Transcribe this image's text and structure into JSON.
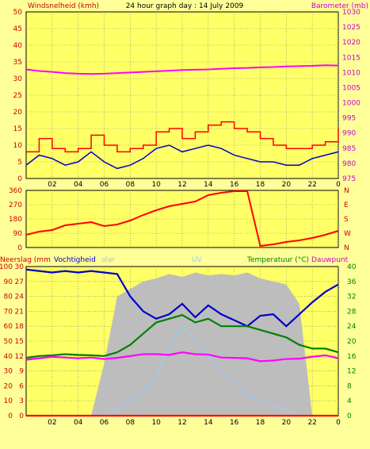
{
  "header": {
    "left_label": "Windsnelheid (kmh)",
    "title": "24 hour graph day : 14 July 2009",
    "right_label": "Barometer (mb)"
  },
  "time_ticks": [
    "02",
    "04",
    "06",
    "08",
    "10",
    "12",
    "14",
    "16",
    "18",
    "20",
    "22",
    "0"
  ],
  "colors": {
    "background": "#ffff99",
    "plot_bg": "#ffff66",
    "gust": "#ff0000",
    "wind": "#0000cc",
    "barometer": "#ff00ff",
    "direction": "#ff0000",
    "solar": "#bdbdbd",
    "uv": "#99ccff",
    "humidity": "#0000cc",
    "temperature": "#008000",
    "dewpoint": "#ff00ff",
    "rain": "#ff0000",
    "left_axis": "#cc0000",
    "right_axis_top": "#cc00cc",
    "right_axis_bottom": "#008000",
    "grid": "#808080"
  },
  "bottom_labels": {
    "rain": "Neerslag (mm",
    "humidity": "Vochtigheid",
    "solar": "olar",
    "uv": "UV",
    "temperature": "Temperatuur (°C)",
    "dewpoint": "Dauwpunt"
  },
  "chart_data": [
    {
      "type": "line",
      "title": "24 hour graph day : 14 July 2009",
      "ylabel": "Windsnelheid (kmh)",
      "y2label": "Barometer (mb)",
      "ylim": [
        0,
        50
      ],
      "y2lim": [
        975,
        1030
      ],
      "yticks": [
        0,
        5,
        10,
        15,
        20,
        25,
        30,
        35,
        40,
        45,
        50
      ],
      "y2ticks": [
        975,
        980,
        985,
        990,
        995,
        1000,
        1005,
        1010,
        1015,
        1020,
        1025,
        1030
      ],
      "x": [
        0,
        1,
        2,
        3,
        4,
        5,
        6,
        7,
        8,
        9,
        10,
        11,
        12,
        13,
        14,
        15,
        16,
        17,
        18,
        19,
        20,
        21,
        22,
        23,
        24
      ],
      "series": [
        {
          "name": "gust",
          "axis": "left",
          "values": [
            8,
            12,
            9,
            8,
            9,
            13,
            10,
            8,
            9,
            10,
            14,
            15,
            12,
            14,
            16,
            17,
            15,
            14,
            12,
            10,
            9,
            9,
            10,
            11,
            15
          ]
        },
        {
          "name": "wind",
          "axis": "left",
          "values": [
            4,
            7,
            6,
            4,
            5,
            8,
            5,
            3,
            4,
            6,
            9,
            10,
            8,
            9,
            10,
            9,
            7,
            6,
            5,
            5,
            4,
            4,
            6,
            7,
            8
          ]
        },
        {
          "name": "barometer",
          "axis": "right",
          "values": [
            1011.0,
            1010.5,
            1010.2,
            1009.8,
            1009.6,
            1009.5,
            1009.6,
            1009.8,
            1010.0,
            1010.2,
            1010.4,
            1010.6,
            1010.8,
            1010.9,
            1011.0,
            1011.2,
            1011.4,
            1011.5,
            1011.7,
            1011.8,
            1012.0,
            1012.1,
            1012.2,
            1012.4,
            1012.3
          ]
        }
      ]
    },
    {
      "type": "line",
      "ylim": [
        0,
        360
      ],
      "yticks": [
        0,
        90,
        180,
        270,
        360
      ],
      "y2ticks": [
        "N",
        "W",
        "S",
        "E",
        "N"
      ],
      "x": [
        0,
        1,
        2,
        3,
        4,
        5,
        6,
        7,
        8,
        9,
        10,
        11,
        12,
        13,
        14,
        15,
        16,
        17,
        18,
        19,
        20,
        21,
        22,
        23,
        24
      ],
      "series": [
        {
          "name": "direction",
          "values": [
            80,
            100,
            110,
            140,
            150,
            160,
            135,
            145,
            170,
            205,
            235,
            260,
            275,
            290,
            330,
            345,
            355,
            355,
            10,
            20,
            35,
            45,
            60,
            80,
            105
          ]
        }
      ]
    },
    {
      "type": "line",
      "ylabel": "Neerslag (mm",
      "y2label": "Temperatuur (°C)",
      "ylim": [
        0,
        100
      ],
      "yticks": [
        0,
        10,
        20,
        30,
        40,
        50,
        60,
        70,
        80,
        90,
        100
      ],
      "mid_yticks": [
        0,
        3,
        6,
        9,
        12,
        15,
        18,
        21,
        24,
        27,
        30
      ],
      "y2ticks": [
        0,
        4,
        8,
        12,
        16,
        20,
        24,
        28,
        32,
        36,
        40
      ],
      "x": [
        0,
        1,
        2,
        3,
        4,
        5,
        6,
        7,
        8,
        9,
        10,
        11,
        12,
        13,
        14,
        15,
        16,
        17,
        18,
        19,
        20,
        21,
        22,
        23,
        24
      ],
      "series": [
        {
          "name": "Vochtigheid",
          "axis": "left",
          "values": [
            98,
            97,
            96,
            97,
            96,
            97,
            96,
            95,
            80,
            70,
            65,
            68,
            75,
            66,
            74,
            68,
            64,
            60,
            67,
            68,
            60,
            68,
            76,
            83,
            88
          ]
        },
        {
          "name": "olar",
          "axis": "left",
          "values": [
            0,
            0,
            0,
            0,
            0,
            0,
            35,
            80,
            85,
            90,
            92,
            95,
            93,
            96,
            94,
            95,
            94,
            96,
            92,
            90,
            88,
            75,
            0,
            0,
            0
          ]
        },
        {
          "name": "UV",
          "axis": "mid",
          "values": [
            0,
            0,
            0,
            0,
            0,
            0,
            0,
            1,
            3,
            5,
            8,
            14,
            18,
            15,
            12,
            9,
            7,
            4,
            3,
            2,
            1,
            0,
            0,
            0,
            0
          ]
        },
        {
          "name": "Temperatuur (°C)",
          "axis": "right",
          "values": [
            15.5,
            16,
            16.2,
            16.5,
            16.3,
            16.2,
            16.0,
            17,
            19,
            22,
            25,
            26,
            27,
            25,
            26,
            24,
            24,
            24,
            23,
            22,
            21,
            19,
            18,
            18,
            17
          ]
        },
        {
          "name": "Dauwpunt",
          "axis": "right",
          "values": [
            15,
            15.4,
            15.8,
            15.6,
            15.4,
            15.6,
            15.2,
            15.5,
            16,
            16.5,
            16.5,
            16.3,
            17,
            16.5,
            16.4,
            15.6,
            15.5,
            15.4,
            14.6,
            14.8,
            15.2,
            15.3,
            15.8,
            16.2,
            15.4
          ]
        },
        {
          "name": "Neerslag (mm",
          "axis": "mid",
          "values": [
            0,
            0,
            0,
            0,
            0,
            0,
            0,
            0,
            0,
            0,
            0,
            0,
            0,
            0,
            0,
            0,
            0,
            0,
            0,
            0,
            0,
            0,
            0,
            0,
            0
          ]
        }
      ]
    }
  ]
}
